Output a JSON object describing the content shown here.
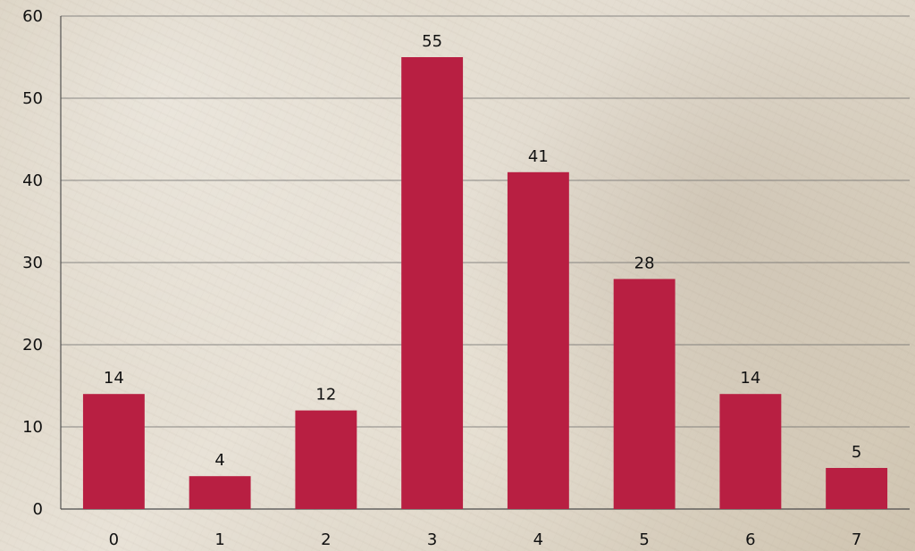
{
  "chart_data": {
    "type": "bar",
    "categories": [
      "0",
      "1",
      "2",
      "3",
      "4",
      "5",
      "6",
      "7"
    ],
    "values": [
      14,
      4,
      12,
      55,
      41,
      28,
      14,
      5
    ],
    "title": "",
    "xlabel": "",
    "ylabel": "",
    "ylim": [
      0,
      60
    ],
    "y_ticks": [
      0,
      10,
      20,
      30,
      40,
      50,
      60
    ],
    "grid": true,
    "data_labels": true,
    "colors": {
      "bar": "#b81f42",
      "grid": "#666666",
      "text": "#111111"
    }
  }
}
